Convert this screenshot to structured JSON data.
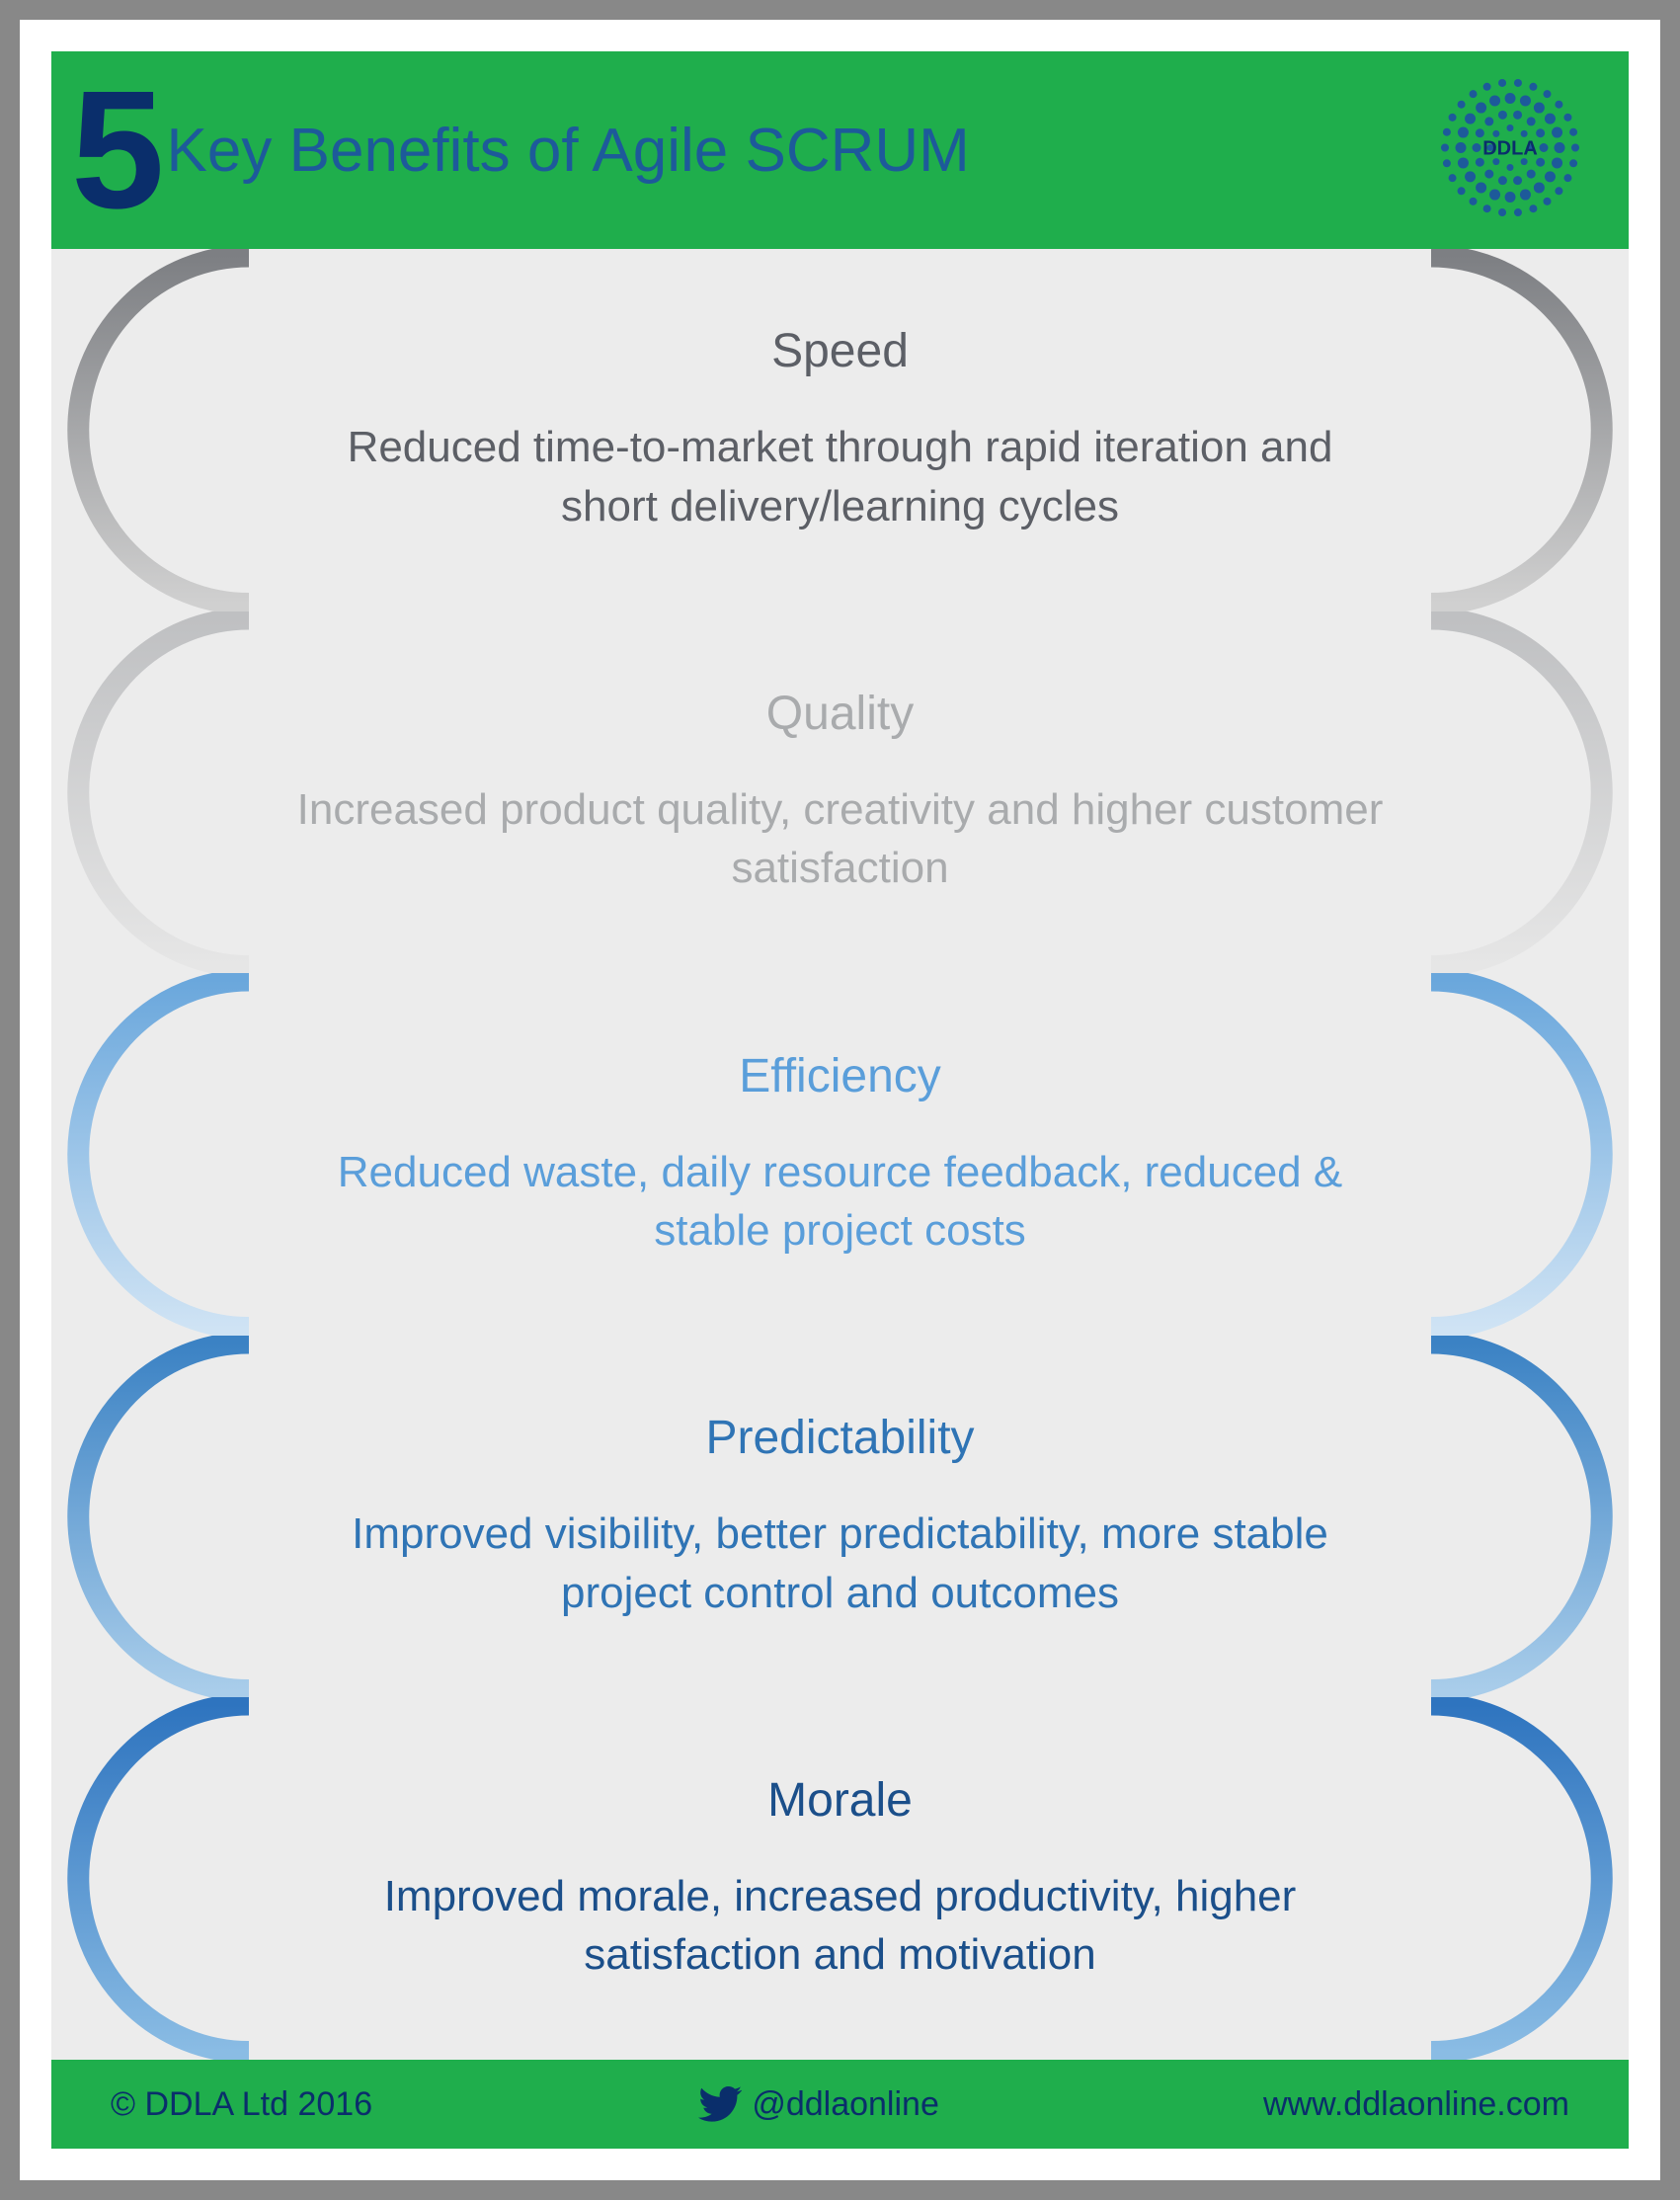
{
  "colors": {
    "header_bg": "#1fae4c",
    "footer_bg": "#1fae4c",
    "header_number": "#0a2e6b",
    "header_title": "#1d5a9a",
    "footer_text": "#0a2e6b",
    "page_inner_bg": "#ececec"
  },
  "header": {
    "number": "5",
    "title": "Key Benefits of Agile SCRUM",
    "logo_text": "DDLA"
  },
  "benefits": [
    {
      "title": "Speed",
      "desc": "Reduced time-to-market through rapid iteration and short delivery/learning cycles",
      "text_color": "#5c5f66",
      "bracket_stroke": "#7d7f83",
      "bracket_grad_light": "#d0d0d0"
    },
    {
      "title": "Quality",
      "desc": "Increased product quality, creativity and higher customer satisfaction",
      "text_color": "#a9abad",
      "bracket_stroke": "#bfc0c2",
      "bracket_grad_light": "#e6e6e6"
    },
    {
      "title": "Efficiency",
      "desc": "Reduced waste, daily resource feedback, reduced & stable project costs",
      "text_color": "#5a9eda",
      "bracket_stroke": "#6aa7dc",
      "bracket_grad_light": "#cfe3f4"
    },
    {
      "title": "Predictability",
      "desc": "Improved visibility, better predictability, more stable project control and outcomes",
      "text_color": "#2f74b5",
      "bracket_stroke": "#3b82c4",
      "bracket_grad_light": "#a9cdea"
    },
    {
      "title": "Morale",
      "desc": "Improved morale, increased productivity, higher satisfaction and motivation",
      "text_color": "#1b4f8a",
      "bracket_stroke": "#2e74bf",
      "bracket_grad_light": "#8abce4"
    }
  ],
  "footer": {
    "copyright": "© DDLA Ltd 2016",
    "handle": "@ddlaonline",
    "url": "www.ddlaonline.com"
  },
  "bracket_style": {
    "stroke_width": 22,
    "arc_radius_ratio": 0.48
  }
}
